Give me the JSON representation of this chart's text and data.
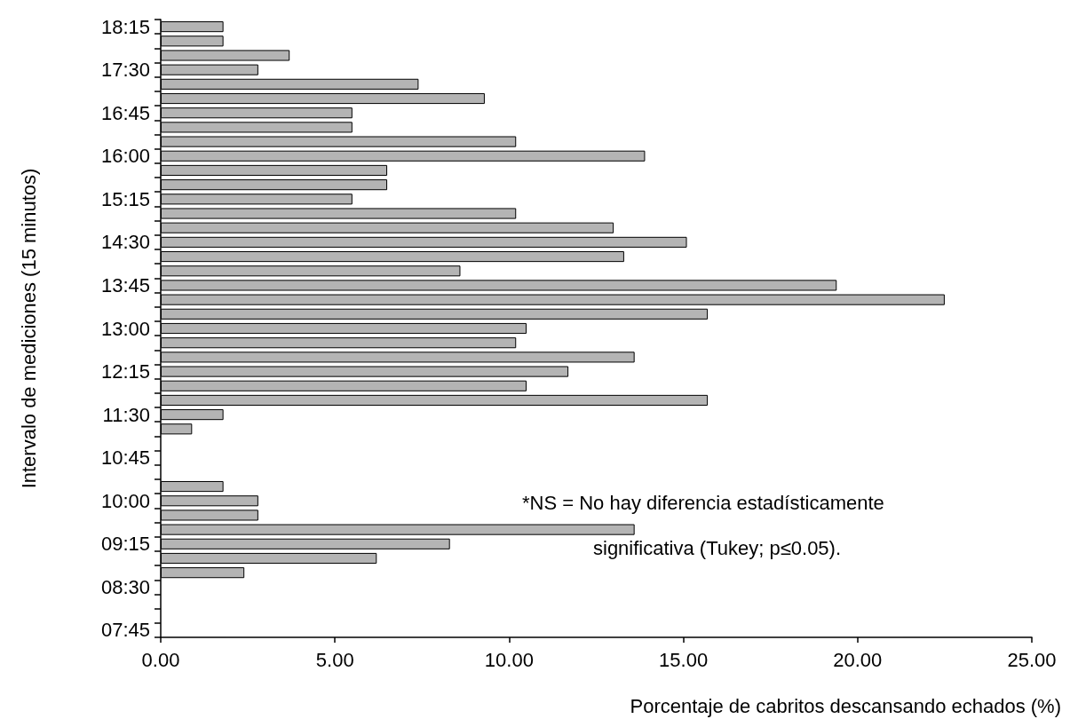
{
  "chart_data": {
    "type": "bar",
    "orientation": "horizontal",
    "ylabel": "Intervalo de mediciones (15 minutos)",
    "xlabel": "Porcentaje de cabritos descansando echados (%)",
    "annotations": [
      "*NS = No hay diferencia estadísticamente",
      "significativa (Tukey; p≤0.05)."
    ],
    "categories": [
      "18:15",
      null,
      null,
      "17:30",
      null,
      null,
      "16:45",
      null,
      null,
      "16:00",
      null,
      null,
      "15:15",
      null,
      null,
      "14:30",
      null,
      null,
      "13:45",
      null,
      null,
      "13:00",
      null,
      null,
      "12:15",
      null,
      null,
      "11:30",
      null,
      null,
      "10:45",
      null,
      null,
      "10:00",
      null,
      null,
      "09:15",
      null,
      null,
      "08:30",
      null,
      null,
      "07:45"
    ],
    "values": [
      1.8,
      1.8,
      3.7,
      2.8,
      7.4,
      9.3,
      5.5,
      5.5,
      10.2,
      13.9,
      6.5,
      6.5,
      5.5,
      10.2,
      13.0,
      15.1,
      13.3,
      8.6,
      19.4,
      22.5,
      15.7,
      10.5,
      10.2,
      13.6,
      11.7,
      10.5,
      15.7,
      1.8,
      0.9,
      null,
      null,
      null,
      1.8,
      2.8,
      2.8,
      13.6,
      8.3,
      6.2,
      2.4,
      null,
      null,
      null,
      null
    ],
    "color": "#b4b4b4",
    "xlim": [
      0,
      25
    ],
    "xticks": [
      {
        "value": 0,
        "label": "0.00"
      },
      {
        "value": 5,
        "label": "5.00"
      },
      {
        "value": 10,
        "label": "10.00"
      },
      {
        "value": 15,
        "label": "15.00"
      },
      {
        "value": 20,
        "label": "20.00"
      },
      {
        "value": 25,
        "label": "25.00"
      }
    ],
    "data_labels": false
  }
}
